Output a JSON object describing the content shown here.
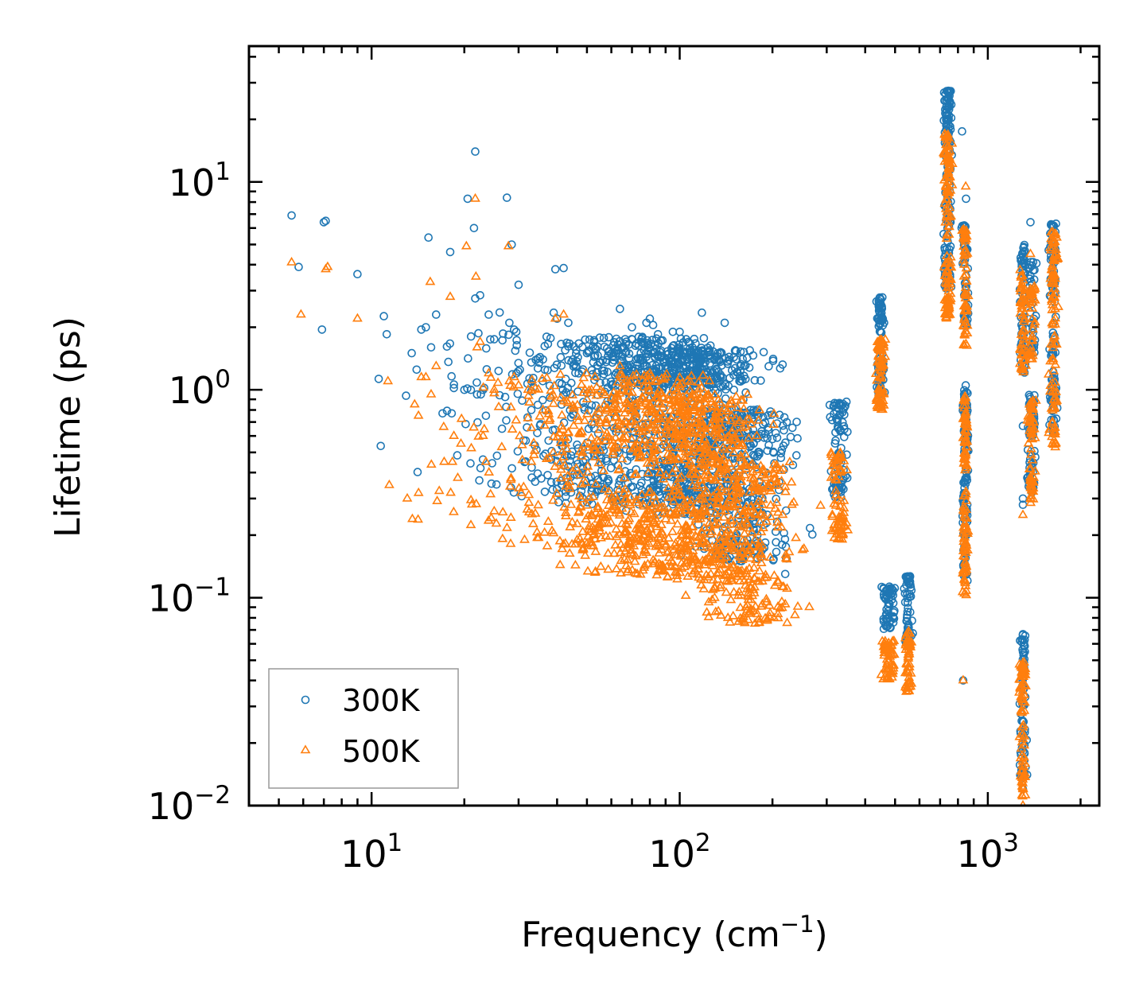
{
  "chart_data": {
    "type": "scatter",
    "xscale": "log",
    "yscale": "log",
    "xlim": [
      4,
      2300
    ],
    "ylim": [
      0.01,
      45
    ],
    "xlabel": "Frequency (cm",
    "xlabel_sup": "−1",
    "xlabel_end": ")",
    "ylabel": "Lifetime (ps)",
    "x_ticks": [
      {
        "value": 10,
        "base": "10",
        "exp": "1"
      },
      {
        "value": 100,
        "base": "10",
        "exp": "2"
      },
      {
        "value": 1000,
        "base": "10",
        "exp": "3"
      }
    ],
    "y_ticks": [
      {
        "value": 0.01,
        "base": "10",
        "exp": "−2"
      },
      {
        "value": 0.1,
        "base": "10",
        "exp": "−1"
      },
      {
        "value": 1,
        "base": "10",
        "exp": "0"
      },
      {
        "value": 10,
        "base": "10",
        "exp": "1"
      }
    ],
    "legend": {
      "position": "lower-left"
    },
    "series": [
      {
        "name": "300K",
        "color": "#1f77b4",
        "marker": "circle",
        "points": [
          [
            5.5,
            6.9
          ],
          [
            5.8,
            3.9
          ],
          [
            7.0,
            6.4
          ],
          [
            7.1,
            6.5
          ],
          [
            9.0,
            3.6
          ],
          [
            11.2,
            1.85
          ],
          [
            13.5,
            1.5
          ],
          [
            14.0,
            1.25
          ],
          [
            14.5,
            1.95
          ],
          [
            15.0,
            2.0
          ],
          [
            15.3,
            5.4
          ],
          [
            15.6,
            1.6
          ],
          [
            16.2,
            2.3
          ],
          [
            17.0,
            0.77
          ],
          [
            18.0,
            4.6
          ],
          [
            18.2,
            0.77
          ],
          [
            18.5,
            1.02
          ],
          [
            20.0,
            1.0
          ],
          [
            20.5,
            8.3
          ],
          [
            21.0,
            1.0
          ],
          [
            21.5,
            6.0
          ],
          [
            21.7,
            14.0
          ],
          [
            21.7,
            2.75
          ],
          [
            22.0,
            0.95
          ],
          [
            22.5,
            2.85
          ],
          [
            23.0,
            1.0
          ],
          [
            23.5,
            0.75
          ],
          [
            24.0,
            2.3
          ],
          [
            25.0,
            1.75
          ],
          [
            26.5,
            0.65
          ],
          [
            27.5,
            8.4
          ],
          [
            28.0,
            2.1
          ],
          [
            28.5,
            5.0
          ],
          [
            29.0,
            1.95
          ],
          [
            29.5,
            1.9
          ],
          [
            30.0,
            3.2
          ],
          [
            33.0,
            0.8
          ],
          [
            35.0,
            1.35
          ],
          [
            36.0,
            1.4
          ],
          [
            37.0,
            1.8
          ],
          [
            39.0,
            2.35
          ],
          [
            39.5,
            3.8
          ],
          [
            40.0,
            2.2
          ],
          [
            42.0,
            3.85
          ],
          [
            42.5,
            1.55
          ],
          [
            43.5,
            2.1
          ],
          [
            45.0,
            1.4
          ],
          [
            47.0,
            1.2
          ],
          [
            50.0,
            1.5
          ],
          [
            55.0,
            1.35
          ],
          [
            60.0,
            0.9
          ],
          [
            64.0,
            2.45
          ],
          [
            66.0,
            1.3
          ],
          [
            70.0,
            2.0
          ],
          [
            75.0,
            1.7
          ],
          [
            78.0,
            2.1
          ],
          [
            80.0,
            2.2
          ],
          [
            82.0,
            2.05
          ],
          [
            85.0,
            1.85
          ],
          [
            95.0,
            1.9
          ],
          [
            100.0,
            1.9
          ],
          [
            105.0,
            1.75
          ],
          [
            110.0,
            1.6
          ],
          [
            118.0,
            2.35
          ],
          [
            125.0,
            1.55
          ],
          [
            135.0,
            1.5
          ],
          [
            140.0,
            2.1
          ],
          [
            150.0,
            1.0
          ],
          [
            160.0,
            0.75
          ],
          [
            170.0,
            0.6
          ],
          [
            180.0,
            0.5
          ],
          [
            190.0,
            0.4
          ],
          [
            200.0,
            0.35
          ],
          [
            210.0,
            0.33
          ],
          [
            215.0,
            0.18
          ],
          [
            220.0,
            0.13
          ],
          [
            825,
            17.5
          ],
          [
            850,
            8.3
          ],
          [
            848,
            1.05
          ],
          [
            832,
            0.04
          ],
          [
            1300,
            0.67
          ],
          [
            1300,
            0.3
          ],
          [
            1300,
            0.28
          ],
          [
            1375,
            6.4
          ],
          [
            1300,
            0.012
          ]
        ],
        "clusters": [
          {
            "x_center": 14.5,
            "x_spread": 0.35,
            "y_min": 0.9,
            "y_max": 2.5,
            "y_peak": 1.3,
            "count": 12
          },
          {
            "x_center": 28,
            "x_spread": 0.18,
            "y_min": 0.35,
            "y_max": 1.9,
            "y_peak": 0.6,
            "count": 60
          },
          {
            "x_center": 48,
            "x_spread": 0.14,
            "y_min": 0.3,
            "y_max": 1.7,
            "y_peak": 0.75,
            "count": 180
          },
          {
            "x_center": 75,
            "x_spread": 0.12,
            "y_min": 0.28,
            "y_max": 1.8,
            "y_peak": 0.9,
            "count": 420
          },
          {
            "x_center": 115,
            "x_spread": 0.1,
            "y_min": 0.25,
            "y_max": 1.55,
            "y_peak": 0.95,
            "count": 520
          },
          {
            "x_center": 160,
            "x_spread": 0.08,
            "y_min": 0.15,
            "y_max": 0.8,
            "y_peak": 0.4,
            "count": 300
          },
          {
            "x_center": 330,
            "x_spread": 0.012,
            "y_min": 0.3,
            "y_max": 0.88,
            "y_peak": 0.55,
            "count": 80
          },
          {
            "x_center": 448,
            "x_spread": 0.006,
            "y_min": 0.9,
            "y_max": 2.8,
            "y_peak": 1.8,
            "count": 80
          },
          {
            "x_center": 478,
            "x_spread": 0.01,
            "y_min": 0.07,
            "y_max": 0.115,
            "y_peak": 0.09,
            "count": 60
          },
          {
            "x_center": 552,
            "x_spread": 0.006,
            "y_min": 0.06,
            "y_max": 0.128,
            "y_peak": 0.09,
            "count": 60
          },
          {
            "x_center": 742,
            "x_spread": 0.006,
            "y_min": 3.0,
            "y_max": 28.0,
            "y_peak": 10.0,
            "count": 140
          },
          {
            "x_center": 845,
            "x_spread": 0.004,
            "y_min": 0.12,
            "y_max": 1.0,
            "y_peak": 0.45,
            "count": 120
          },
          {
            "x_center": 845,
            "x_spread": 0.004,
            "y_min": 2.0,
            "y_max": 6.2,
            "y_peak": 3.5,
            "count": 60
          },
          {
            "x_center": 1300,
            "x_spread": 0.005,
            "y_min": 0.013,
            "y_max": 0.067,
            "y_peak": 0.035,
            "count": 80
          },
          {
            "x_center": 1300,
            "x_spread": 0.005,
            "y_min": 1.2,
            "y_max": 5.0,
            "y_peak": 2.5,
            "count": 60
          },
          {
            "x_center": 1385,
            "x_spread": 0.006,
            "y_min": 0.32,
            "y_max": 0.95,
            "y_peak": 0.55,
            "count": 70
          },
          {
            "x_center": 1385,
            "x_spread": 0.006,
            "y_min": 1.5,
            "y_max": 4.3,
            "y_peak": 2.5,
            "count": 40
          },
          {
            "x_center": 1635,
            "x_spread": 0.006,
            "y_min": 0.6,
            "y_max": 6.3,
            "y_peak": 2.5,
            "count": 110
          }
        ]
      },
      {
        "name": "500K",
        "color": "#ff7f0e",
        "marker": "triangle",
        "points": [
          [
            5.5,
            4.1
          ],
          [
            5.9,
            2.3
          ],
          [
            7.1,
            3.8
          ],
          [
            7.2,
            3.9
          ],
          [
            9.0,
            2.2
          ],
          [
            11.3,
            1.1
          ],
          [
            13.8,
            0.85
          ],
          [
            14.2,
            0.75
          ],
          [
            14.5,
            1.15
          ],
          [
            15.0,
            1.15
          ],
          [
            15.5,
            3.3
          ],
          [
            15.6,
            0.95
          ],
          [
            16.2,
            1.3
          ],
          [
            17.2,
            0.45
          ],
          [
            18.0,
            2.8
          ],
          [
            18.3,
            0.45
          ],
          [
            18.5,
            0.6
          ],
          [
            19.5,
            0.55
          ],
          [
            20.3,
            4.9
          ],
          [
            21.7,
            8.3
          ],
          [
            21.8,
            3.5
          ],
          [
            22.0,
            1.6
          ],
          [
            22.5,
            1.7
          ],
          [
            23.0,
            0.6
          ],
          [
            23.5,
            0.45
          ],
          [
            24.0,
            1.2
          ],
          [
            25.0,
            1.0
          ],
          [
            27.8,
            4.9
          ],
          [
            28.0,
            1.1
          ],
          [
            29.0,
            1.15
          ],
          [
            30.0,
            1.05
          ],
          [
            33.0,
            0.45
          ],
          [
            36.0,
            0.8
          ],
          [
            39.5,
            2.2
          ],
          [
            42.0,
            2.3
          ],
          [
            50.0,
            0.9
          ],
          [
            64.0,
            1.3
          ],
          [
            80.0,
            1.2
          ],
          [
            100.0,
            1.05
          ],
          [
            110.0,
            0.95
          ],
          [
            1300,
            0.01
          ],
          [
            832,
            0.04
          ],
          [
            848,
            9.5
          ],
          [
            1300,
            0.25
          ],
          [
            1375,
            4.5
          ]
        ],
        "clusters": [
          {
            "x_center": 28,
            "x_spread": 0.18,
            "y_min": 0.22,
            "y_max": 1.15,
            "y_peak": 0.4,
            "count": 60
          },
          {
            "x_center": 48,
            "x_spread": 0.14,
            "y_min": 0.17,
            "y_max": 1.05,
            "y_peak": 0.4,
            "count": 180
          },
          {
            "x_center": 75,
            "x_spread": 0.12,
            "y_min": 0.13,
            "y_max": 1.2,
            "y_peak": 0.35,
            "count": 420
          },
          {
            "x_center": 115,
            "x_spread": 0.1,
            "y_min": 0.12,
            "y_max": 0.95,
            "y_peak": 0.4,
            "count": 520
          },
          {
            "x_center": 165,
            "x_spread": 0.08,
            "y_min": 0.075,
            "y_max": 0.45,
            "y_peak": 0.2,
            "count": 300
          },
          {
            "x_center": 330,
            "x_spread": 0.012,
            "y_min": 0.19,
            "y_max": 0.5,
            "y_peak": 0.3,
            "count": 80
          },
          {
            "x_center": 448,
            "x_spread": 0.006,
            "y_min": 0.8,
            "y_max": 1.75,
            "y_peak": 1.1,
            "count": 80
          },
          {
            "x_center": 478,
            "x_spread": 0.01,
            "y_min": 0.04,
            "y_max": 0.062,
            "y_peak": 0.05,
            "count": 60
          },
          {
            "x_center": 552,
            "x_spread": 0.006,
            "y_min": 0.035,
            "y_max": 0.07,
            "y_peak": 0.05,
            "count": 60
          },
          {
            "x_center": 742,
            "x_spread": 0.006,
            "y_min": 2.2,
            "y_max": 17.0,
            "y_peak": 5.0,
            "count": 140
          },
          {
            "x_center": 845,
            "x_spread": 0.004,
            "y_min": 0.1,
            "y_max": 0.95,
            "y_peak": 0.35,
            "count": 120
          },
          {
            "x_center": 845,
            "x_spread": 0.004,
            "y_min": 1.6,
            "y_max": 6.0,
            "y_peak": 3.0,
            "count": 60
          },
          {
            "x_center": 1300,
            "x_spread": 0.005,
            "y_min": 0.011,
            "y_max": 0.05,
            "y_peak": 0.025,
            "count": 80
          },
          {
            "x_center": 1300,
            "x_spread": 0.005,
            "y_min": 1.2,
            "y_max": 3.8,
            "y_peak": 2.0,
            "count": 60
          },
          {
            "x_center": 1385,
            "x_spread": 0.006,
            "y_min": 0.28,
            "y_max": 0.9,
            "y_peak": 0.5,
            "count": 70
          },
          {
            "x_center": 1385,
            "x_spread": 0.006,
            "y_min": 1.4,
            "y_max": 3.2,
            "y_peak": 2.0,
            "count": 40
          },
          {
            "x_center": 1635,
            "x_spread": 0.006,
            "y_min": 0.52,
            "y_max": 5.8,
            "y_peak": 2.0,
            "count": 110
          }
        ]
      }
    ]
  }
}
